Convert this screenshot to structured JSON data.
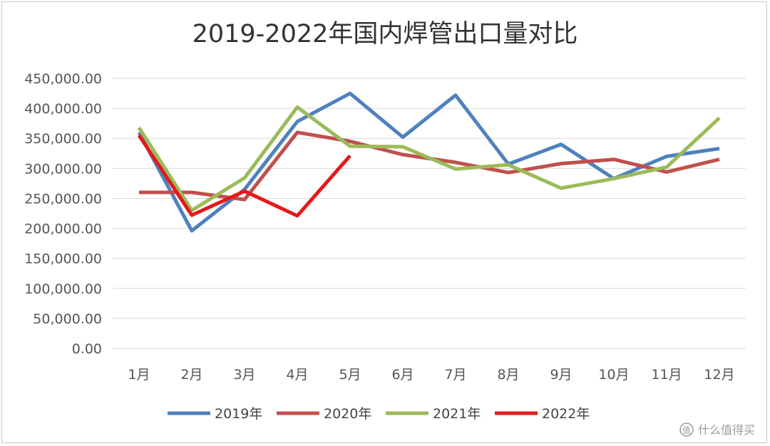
{
  "chart_data": {
    "type": "line",
    "title": "2019-2022年国内焊管出口量对比",
    "xlabel": "",
    "ylabel": "",
    "categories": [
      "1月",
      "2月",
      "3月",
      "4月",
      "5月",
      "6月",
      "7月",
      "8月",
      "9月",
      "10月",
      "11月",
      "12月"
    ],
    "ylim": [
      0,
      450000
    ],
    "yticks": [
      0,
      50000,
      100000,
      150000,
      200000,
      250000,
      300000,
      350000,
      400000,
      450000
    ],
    "ytick_labels": [
      "0.00",
      "50,000.00",
      "100,000.00",
      "150,000.00",
      "200,000.00",
      "250,000.00",
      "300,000.00",
      "350,000.00",
      "400,000.00",
      "450,000.00"
    ],
    "grid": true,
    "legend_position": "bottom",
    "series": [
      {
        "name": "2019年",
        "color": "#4f81bd",
        "values": [
          360000,
          196000,
          265000,
          378000,
          425000,
          352000,
          422000,
          307000,
          340000,
          283000,
          320000,
          333000
        ]
      },
      {
        "name": "2020年",
        "color": "#c0504d",
        "values": [
          260000,
          260000,
          248000,
          360000,
          345000,
          323000,
          310000,
          293000,
          308000,
          315000,
          294000,
          315000
        ]
      },
      {
        "name": "2021年",
        "color": "#9bbb59",
        "values": [
          368000,
          230000,
          284000,
          402000,
          337000,
          336000,
          299000,
          306000,
          267000,
          283000,
          302000,
          384000
        ]
      },
      {
        "name": "2022年",
        "color": "#e31a1c",
        "values": [
          355000,
          222000,
          262000,
          221000,
          321000,
          null,
          null,
          null,
          null,
          null,
          null,
          null
        ]
      }
    ]
  },
  "watermark": {
    "icon": "zhi-logo-icon",
    "text": "什么值得买"
  }
}
